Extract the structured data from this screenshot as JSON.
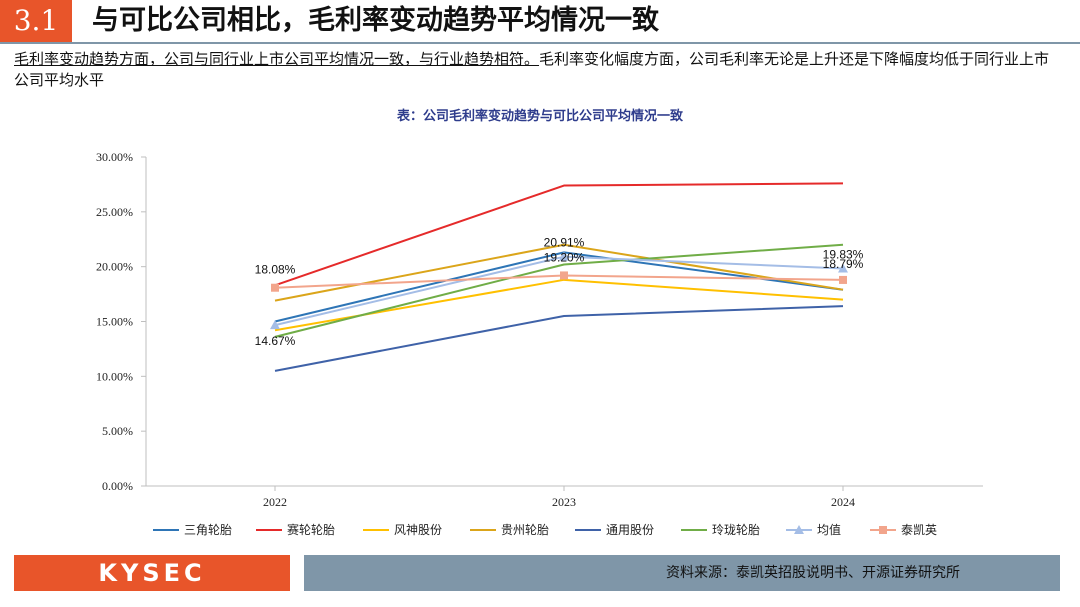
{
  "header": {
    "section_number": "3.1",
    "title": "与可比公司相比，毛利率变动趋势平均情况一致"
  },
  "summary": {
    "underlined": "毛利率变动趋势方面，公司与同行业上市公司平均情况一致，与行业趋势相符。",
    "rest": "毛利率变化幅度方面，公司毛利率无论是上升还是下降幅度均低于同行业上市公司平均水平"
  },
  "chart_caption": "表：公司毛利率变动趋势与可比公司平均情况一致",
  "footer": {
    "logo": "KYSEC",
    "source": "资料来源：泰凯英招股说明书、开源证券研究所"
  },
  "chart_data": {
    "type": "line",
    "title": "表：公司毛利率变动趋势与可比公司平均情况一致",
    "categories": [
      "2022",
      "2023",
      "2024"
    ],
    "ylim": [
      0,
      30
    ],
    "yticks": [
      0,
      5,
      10,
      15,
      20,
      25,
      30
    ],
    "ytick_labels": [
      "0.00%",
      "5.00%",
      "10.00%",
      "15.00%",
      "20.00%",
      "25.00%",
      "30.00%"
    ],
    "legend_position": "bottom",
    "series": [
      {
        "name": "三角轮胎",
        "color": "#2e75b6",
        "marker": "none",
        "values": [
          15.0,
          21.3,
          17.9
        ]
      },
      {
        "name": "赛轮轮胎",
        "color": "#e52a2a",
        "marker": "none",
        "values": [
          18.3,
          27.4,
          27.6
        ]
      },
      {
        "name": "风神股份",
        "color": "#ffc000",
        "marker": "none",
        "values": [
          14.2,
          18.8,
          17.0
        ]
      },
      {
        "name": "贵州轮胎",
        "color": "#dba51a",
        "marker": "none",
        "values": [
          16.9,
          22.0,
          17.9
        ]
      },
      {
        "name": "通用股份",
        "color": "#3f62a8",
        "marker": "none",
        "values": [
          10.5,
          15.5,
          16.4
        ]
      },
      {
        "name": "玲珑轮胎",
        "color": "#70ad47",
        "marker": "none",
        "values": [
          13.6,
          20.2,
          22.0
        ]
      },
      {
        "name": "均值",
        "color": "#a4bde6",
        "marker": "triangle",
        "values": [
          14.67,
          20.91,
          19.83
        ],
        "labels": [
          "14.67%",
          "20.91%",
          "19.83%"
        ]
      },
      {
        "name": "泰凯英",
        "color": "#f2a58c",
        "marker": "square",
        "values": [
          18.08,
          19.2,
          18.79
        ],
        "labels": [
          "18.08%",
          "19.20%",
          "18.79%"
        ]
      }
    ]
  }
}
